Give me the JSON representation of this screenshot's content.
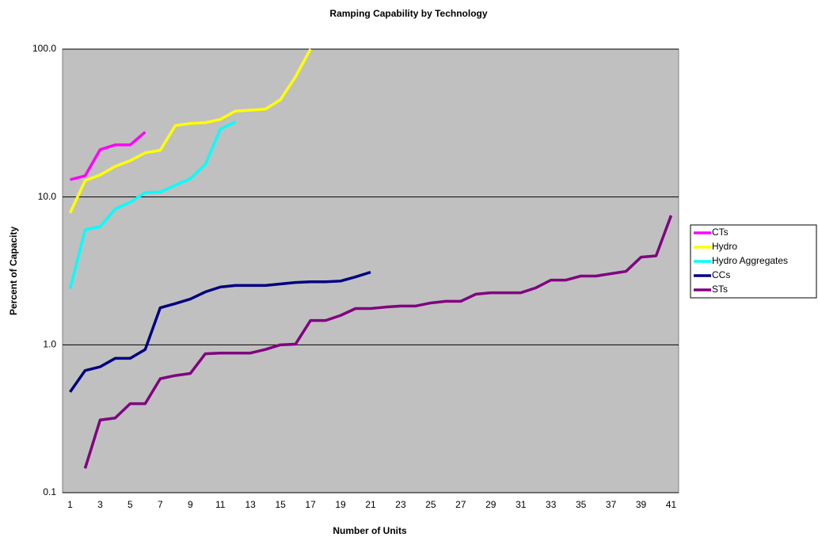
{
  "chart_data": {
    "type": "line",
    "title": "Ramping Capability by Technology",
    "x_label": "Number of Units",
    "y_label": "Percent of Capacity",
    "log_scale": true,
    "grid": true,
    "legend": "right",
    "background": "#c0c0c0",
    "categories": [
      1,
      null,
      3,
      null,
      5,
      null,
      7,
      null,
      9,
      null,
      11,
      null,
      13,
      null,
      15,
      null,
      17,
      null,
      19,
      null,
      21,
      null,
      23,
      null,
      25,
      null,
      27,
      null,
      29,
      null,
      31,
      null,
      33,
      null,
      35,
      null,
      37,
      null,
      39,
      null,
      41
    ],
    "ylim": [
      0.1,
      100
    ],
    "yticks": [
      0.1,
      {
        "value": 1,
        "label": "1.0"
      },
      {
        "value": 10,
        "label": "10.0"
      },
      {
        "value": 100,
        "label": "100.0"
      }
    ],
    "series": [
      {
        "name": "CTs",
        "color": "#ff00ff",
        "values": [
          13.1,
          13.9,
          20.9,
          22.5,
          22.5,
          27.5,
          null,
          null,
          null,
          null,
          null,
          null,
          null,
          null,
          null,
          null,
          null,
          null,
          null,
          null,
          null,
          null,
          null,
          null,
          null,
          null,
          null,
          null,
          null,
          null,
          null,
          null,
          null,
          null,
          null,
          null,
          null,
          null,
          null,
          null,
          null
        ]
      },
      {
        "name": "Hydro",
        "color": "#ffff00",
        "values": [
          7.8,
          12.9,
          14.1,
          16.1,
          17.6,
          19.9,
          20.7,
          30.4,
          31.4,
          31.8,
          33.5,
          38.1,
          38.6,
          39.3,
          45.5,
          65,
          100,
          null,
          null,
          null,
          null,
          null,
          null,
          null,
          null,
          null,
          null,
          null,
          null,
          null,
          null,
          null,
          null,
          null,
          null,
          null,
          null,
          null,
          null,
          null,
          null
        ]
      },
      {
        "name": "Hydro Aggregates",
        "color": "#00ffff",
        "values": [
          2.4,
          6.0,
          6.3,
          8.3,
          9.2,
          10.7,
          10.8,
          12.0,
          13.3,
          16.6,
          28.8,
          32.2,
          null,
          null,
          null,
          null,
          null,
          null,
          null,
          null,
          null,
          null,
          null,
          null,
          null,
          null,
          null,
          null,
          null,
          null,
          null,
          null,
          null,
          null,
          null,
          null,
          null,
          null,
          null,
          null,
          null
        ]
      },
      {
        "name": "CCs",
        "color": "#000080",
        "values": [
          0.48,
          0.67,
          0.71,
          0.81,
          0.81,
          0.93,
          1.78,
          1.9,
          2.04,
          2.28,
          2.46,
          2.52,
          2.52,
          2.52,
          2.58,
          2.64,
          2.67,
          2.67,
          2.7,
          2.88,
          3.1,
          null,
          null,
          null,
          null,
          null,
          null,
          null,
          null,
          null,
          null,
          null,
          null,
          null,
          null,
          null,
          null,
          null,
          null,
          null,
          null
        ]
      },
      {
        "name": "STs",
        "color": "#800080",
        "values": [
          null,
          0.146,
          0.31,
          0.32,
          0.4,
          0.4,
          0.59,
          0.62,
          0.64,
          0.87,
          0.88,
          0.88,
          0.88,
          0.93,
          1.0,
          1.01,
          1.46,
          1.46,
          1.58,
          1.76,
          1.76,
          1.8,
          1.83,
          1.83,
          1.92,
          1.97,
          1.97,
          2.2,
          2.25,
          2.25,
          2.25,
          2.43,
          2.74,
          2.74,
          2.92,
          2.92,
          3.03,
          3.14,
          3.92,
          4.0,
          7.5
        ]
      }
    ]
  }
}
